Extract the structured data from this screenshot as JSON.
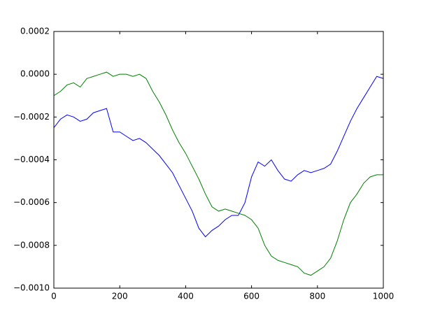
{
  "chart_data": {
    "type": "line",
    "x": [
      0,
      20,
      40,
      60,
      80,
      100,
      120,
      140,
      160,
      180,
      200,
      220,
      240,
      260,
      280,
      300,
      320,
      340,
      360,
      380,
      400,
      420,
      440,
      460,
      480,
      500,
      520,
      540,
      560,
      580,
      600,
      620,
      640,
      660,
      680,
      700,
      720,
      740,
      760,
      780,
      800,
      820,
      840,
      860,
      880,
      900,
      920,
      940,
      960,
      980,
      1000
    ],
    "series": [
      {
        "color": "#0000ff",
        "values": [
          -0.00025,
          -0.00021,
          -0.00019,
          -0.0002,
          -0.00022,
          -0.00021,
          -0.00018,
          -0.00017,
          -0.00016,
          -0.00027,
          -0.00027,
          -0.00029,
          -0.00031,
          -0.0003,
          -0.00032,
          -0.00035,
          -0.00038,
          -0.00042,
          -0.00046,
          -0.00052,
          -0.00058,
          -0.00064,
          -0.00072,
          -0.00076,
          -0.00073,
          -0.00071,
          -0.00068,
          -0.00066,
          -0.00066,
          -0.0006,
          -0.00048,
          -0.00041,
          -0.00043,
          -0.0004,
          -0.00045,
          -0.00049,
          -0.0005,
          -0.00047,
          -0.00045,
          -0.00046,
          -0.00045,
          -0.00044,
          -0.00042,
          -0.00036,
          -0.00029,
          -0.00022,
          -0.00016,
          -0.00011,
          -6e-05,
          -1e-05,
          -2e-05
        ]
      },
      {
        "color": "#008000",
        "values": [
          -0.0001,
          -8e-05,
          -5e-05,
          -4e-05,
          -6e-05,
          -2e-05,
          -1e-05,
          0,
          1e-05,
          -1e-05,
          0,
          0,
          -1e-05,
          0,
          -2e-05,
          -8e-05,
          -0.00013,
          -0.00019,
          -0.00026,
          -0.00032,
          -0.00037,
          -0.00043,
          -0.00049,
          -0.00056,
          -0.00062,
          -0.00064,
          -0.00063,
          -0.00064,
          -0.00065,
          -0.00066,
          -0.00068,
          -0.00072,
          -0.0008,
          -0.00085,
          -0.00087,
          -0.00088,
          -0.00089,
          -0.0009,
          -0.00093,
          -0.00094,
          -0.00092,
          -0.0009,
          -0.00086,
          -0.00078,
          -0.00068,
          -0.0006,
          -0.00056,
          -0.00051,
          -0.00048,
          -0.00047,
          -0.00047
        ]
      }
    ],
    "xlim": [
      0,
      1000
    ],
    "xticks": [
      0,
      200,
      400,
      600,
      800,
      1000
    ],
    "ylim": [
      -0.001,
      0.0002
    ],
    "yticks": [
      {
        "value": -0.001,
        "label": "−0.0010"
      },
      {
        "value": -0.0008,
        "label": "−0.0008"
      },
      {
        "value": -0.0006,
        "label": "−0.0006"
      },
      {
        "value": -0.0004,
        "label": "−0.0004"
      },
      {
        "value": -0.0002,
        "label": "−0.0002"
      },
      {
        "value": 0,
        "label": "0.0000"
      },
      {
        "value": 0.0002,
        "label": "0.0002"
      }
    ],
    "grid": false
  }
}
